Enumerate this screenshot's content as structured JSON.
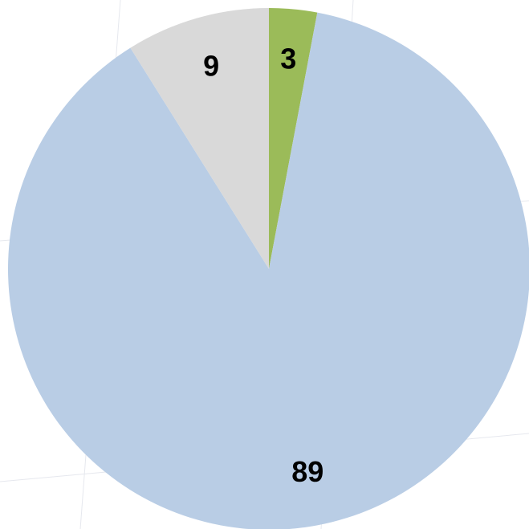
{
  "chart_data": {
    "type": "pie",
    "values": [
      3,
      89,
      9
    ],
    "colors": [
      "#9bbb59",
      "#b9cde5",
      "#d9d9d9"
    ],
    "start_angle": 0,
    "direction": "clockwise"
  }
}
